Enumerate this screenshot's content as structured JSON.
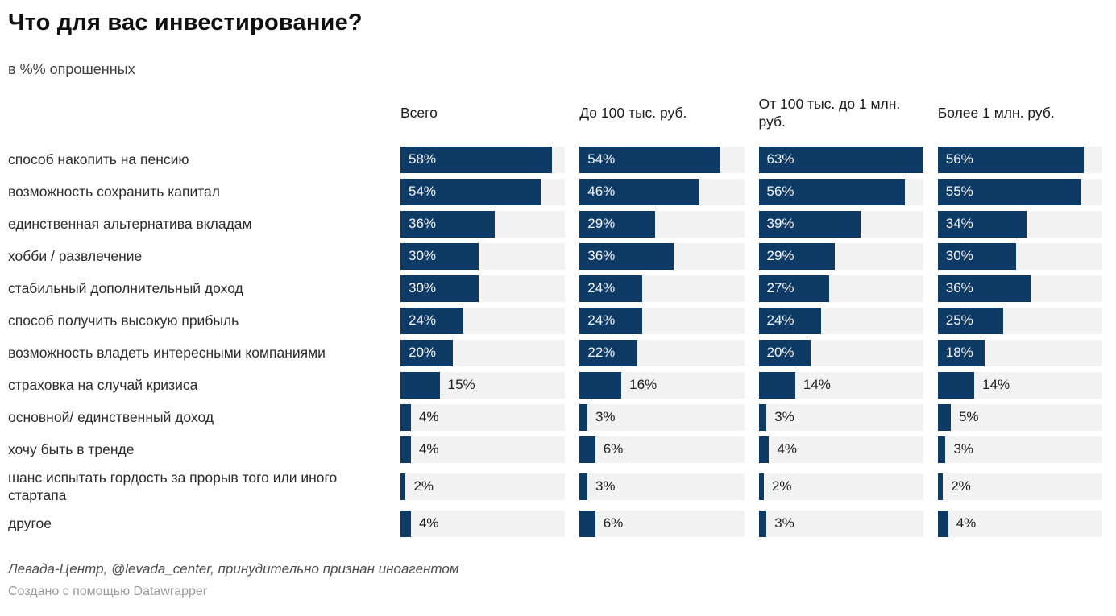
{
  "title": "Что для вас инвестирование?",
  "subtitle": "в %% опрошенных",
  "footer": {
    "source": "Левада-Центр, @levada_center, принудительно признан иноагентом",
    "attribution": "Создано с помощью Datawrapper"
  },
  "chart_data": {
    "type": "bar",
    "orientation": "horizontal",
    "title": "Что для вас инвестирование?",
    "subtitle": "в %% опрошенных",
    "value_suffix": "%",
    "scale_max": 63,
    "label_inside_threshold": 18,
    "bar_color": "#0e3a66",
    "track_color": "#f2f2f2",
    "legend_position": "column-headers",
    "grid": false,
    "categories": [
      "способ накопить на пенсию",
      "возможность сохранить капитал",
      "единственная альтернатива вкладам",
      "хобби / развлечение",
      "стабильный дополнительный доход",
      "способ получить высокую прибыль",
      "возможность владеть интересными компаниями",
      "страховка на случай кризиса",
      "основной/ единственный доход",
      "хочу быть в тренде",
      "шанс испытать гордость за прорыв того или иного стартапа",
      "другое"
    ],
    "series": [
      {
        "name": "Всего",
        "values": [
          58,
          54,
          36,
          30,
          30,
          24,
          20,
          15,
          4,
          4,
          2,
          4
        ]
      },
      {
        "name": "До 100 тыс. руб.",
        "values": [
          54,
          46,
          29,
          36,
          24,
          24,
          22,
          16,
          3,
          6,
          3,
          6
        ]
      },
      {
        "name": "От 100 тыс. до 1 млн. руб.",
        "values": [
          63,
          56,
          39,
          29,
          27,
          24,
          20,
          14,
          3,
          4,
          2,
          3
        ]
      },
      {
        "name": "Более 1 млн. руб.",
        "values": [
          56,
          55,
          34,
          30,
          36,
          25,
          18,
          14,
          5,
          3,
          2,
          4
        ]
      }
    ]
  }
}
